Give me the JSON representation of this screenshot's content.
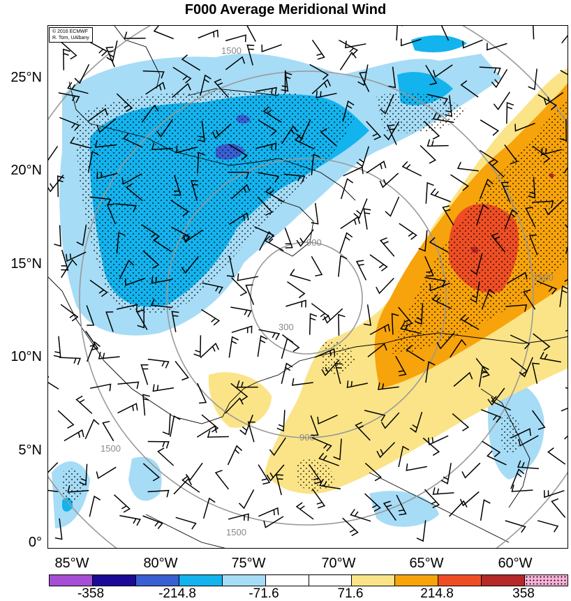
{
  "title": "F000 Average Meridional Wind",
  "credit": {
    "line1": "© 2016 ECMWF",
    "line2": "R. Torn, UAlbany"
  },
  "lat_labels": [
    "25°N",
    "20°N",
    "15°N",
    "10°N",
    "5°N",
    "0°"
  ],
  "lon_labels": [
    "85°W",
    "80°W",
    "75°W",
    "70°W",
    "65°W",
    "60°W"
  ],
  "contour_labels": [
    "300",
    "900",
    "1500"
  ],
  "colorbar": {
    "colors": [
      "#a64fd6",
      "#1a0a96",
      "#3a5fd3",
      "#13b3ee",
      "#a6dcf6",
      "#ffffff",
      "#ffffff",
      "#fbe487",
      "#f7a30b",
      "#ef4e24",
      "#b42828",
      "#f9b0d8"
    ],
    "labels": [
      "-358",
      "-214.8",
      "-71.6",
      "71.6",
      "214.8",
      "358"
    ]
  },
  "legend": {
    "stippling": "shaded regions with dot stipple",
    "barbs": "wind barbs"
  }
}
